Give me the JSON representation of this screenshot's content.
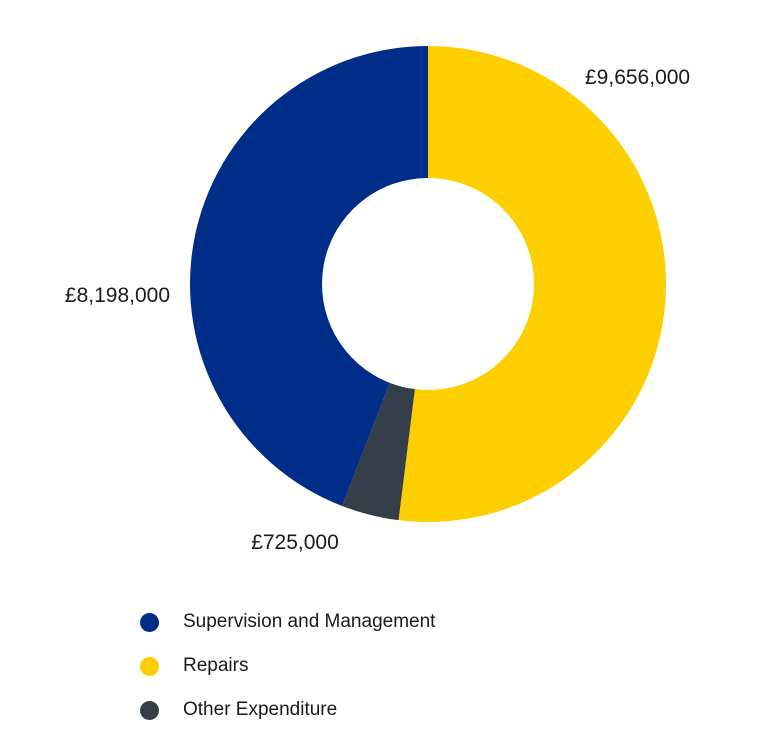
{
  "chart_data": {
    "type": "pie",
    "subtype": "donut",
    "title": "",
    "categories": [
      "Supervision and Management",
      "Repairs",
      "Other Expenditure"
    ],
    "values": [
      8198000,
      9656000,
      725000
    ],
    "value_labels": [
      "£8,198,000",
      "£9,656,000",
      "£725,000"
    ],
    "colors": [
      "#002d87",
      "#fecf00",
      "#343e48"
    ],
    "legend_position": "bottom",
    "grid": false
  }
}
